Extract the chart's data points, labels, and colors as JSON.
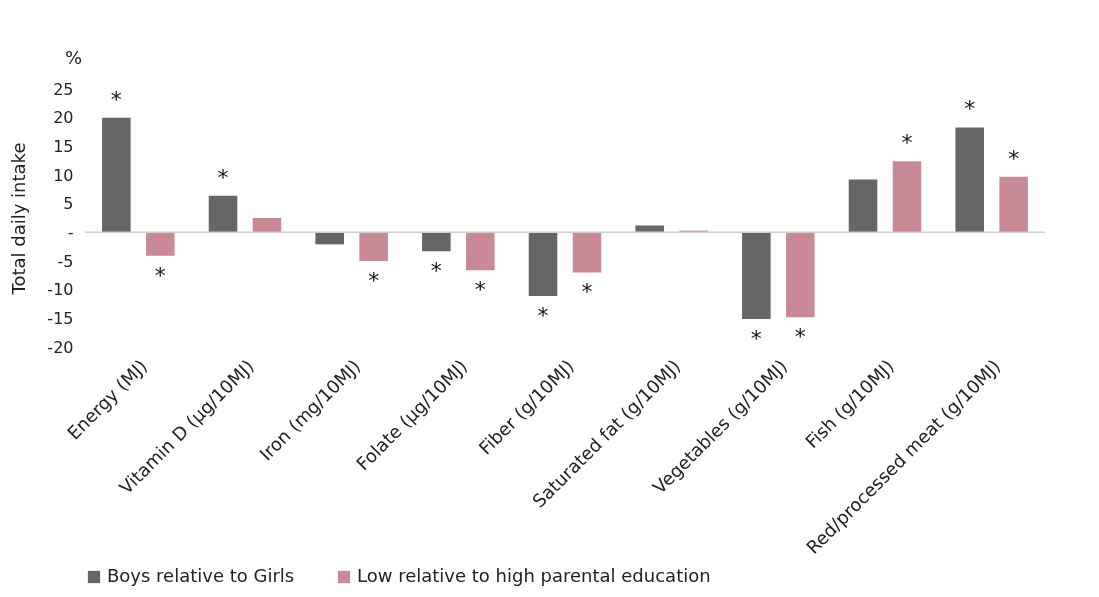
{
  "chart_data": {
    "type": "bar",
    "ylabel": "Total daily intake",
    "annotations": [
      "%"
    ],
    "categories": [
      "Energy (MJ)",
      "Vitamin D (µg/10MJ)",
      "Iron (mg/10MJ)",
      "Folate (µg/10MJ)",
      "Fiber (g/10MJ)",
      "Saturated fat (g/10MJ)",
      "Vegetables (g/10MJ)",
      "Fish (g/10MJ)",
      "Red/processed meat (g/10MJ)"
    ],
    "series": [
      {
        "name": "Boys relative to Girls",
        "color": "#666666",
        "values": [
          20,
          6.4,
          -2.1,
          -3.3,
          -11.1,
          1.2,
          -15.1,
          9.2,
          18.3
        ],
        "value_labels": [
          "*",
          "*",
          null,
          "*",
          "*",
          null,
          "*",
          null,
          "*"
        ]
      },
      {
        "name": "Low relative to high parental education",
        "color": "#c98a97",
        "values": [
          -4.1,
          2.5,
          -5,
          -6.6,
          -7,
          0.3,
          -14.8,
          12.4,
          9.7
        ],
        "value_labels": [
          "*",
          null,
          "*",
          "*",
          "*",
          null,
          "*",
          "*",
          "*"
        ]
      }
    ],
    "ylim": [
      -20,
      25
    ],
    "yticks": [
      -20,
      -15,
      -10,
      -5,
      {
        "value": 0,
        "label": "-"
      },
      5,
      10,
      15,
      20,
      25
    ],
    "ref_lines": [
      {
        "axis": "y",
        "value": 0,
        "color": "#d0d0d0"
      }
    ],
    "legend": "bottom"
  }
}
